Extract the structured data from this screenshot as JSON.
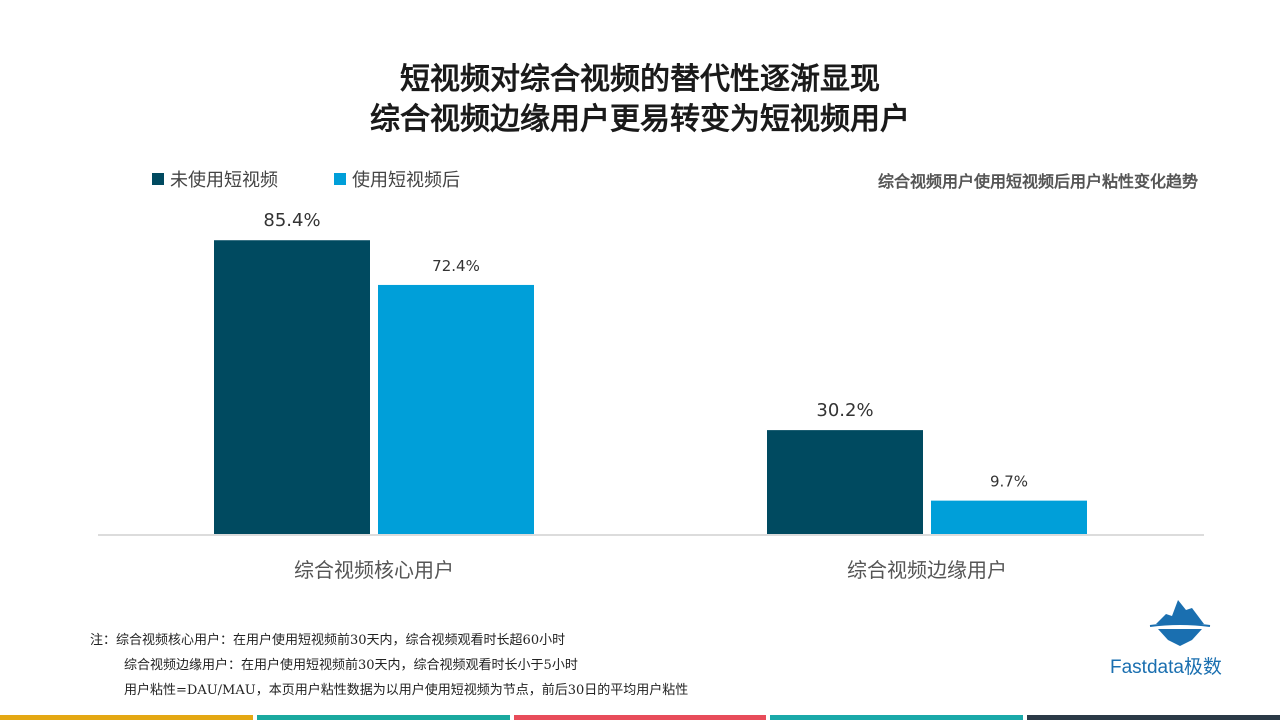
{
  "title": {
    "line1": "短视频对综合视频的替代性逐渐显现",
    "line2": "综合视频边缘用户更易转变为短视频用户"
  },
  "colors": {
    "series_before": "#004a60",
    "series_after": "#009fd9",
    "logo": "#1a6fb0",
    "bottom_bar": [
      "#e4a813",
      "#1aa99f",
      "#e84c5a",
      "#1aa9a9",
      "#2b3a47"
    ]
  },
  "legend": {
    "before": "未使用短视频",
    "after": "使用短视频后"
  },
  "chart_title": "综合视频用户使用短视频后用户粘性变化趋势",
  "chart_data": {
    "type": "bar",
    "categories": [
      "综合视频核心用户",
      "综合视频边缘用户"
    ],
    "series": [
      {
        "name": "未使用短视频",
        "values": [
          85.4,
          30.2
        ],
        "labels": [
          "85.4%",
          "30.2%"
        ]
      },
      {
        "name": "使用短视频后",
        "values": [
          72.4,
          9.7
        ],
        "labels": [
          "72.4%",
          "9.7%"
        ]
      }
    ],
    "unit": "%",
    "ylim": [
      0,
      100
    ],
    "grid": false,
    "legend_position": "top-left"
  },
  "notes": [
    "注：综合视频核心用户：在用户使用短视频前30天内，综合视频观看时长超60小时",
    "综合视频边缘用户：在用户使用短视频前30天内，综合视频观看时长小于5小时",
    "用户粘性=DAU/MAU，本页用户粘性数据为以用户使用短视频为节点，前后30日的平均用户粘性"
  ],
  "logo": {
    "text": "Fastdata极数",
    "icon": "iceberg-icon"
  }
}
